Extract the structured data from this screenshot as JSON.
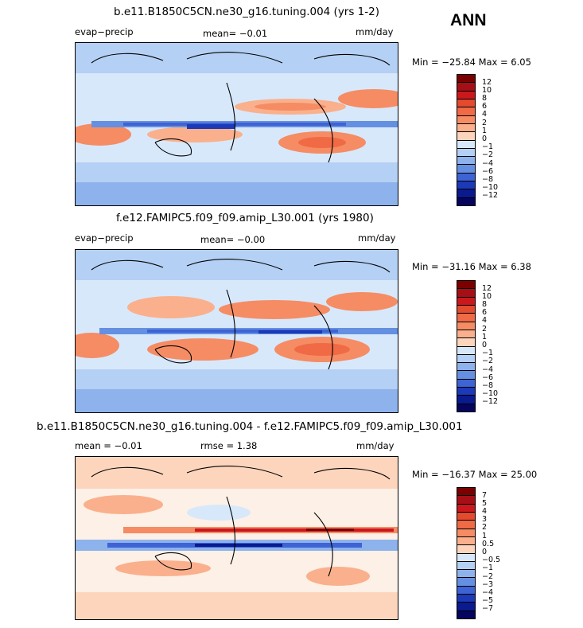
{
  "season": "ANN",
  "panels": [
    {
      "title": "b.e11.B1850C5CN.ne30_g16.tuning.004 (yrs 1-2)",
      "left_label": "evap−precip",
      "stat": "mean=   −0.01",
      "units": "mm/day",
      "minmax": "Min = −25.84  Max =    6.05",
      "colorbar_labels": [
        "12",
        "10",
        "8",
        "6",
        "4",
        "2",
        "1",
        "0",
        "−1",
        "−2",
        "−4",
        "−6",
        "−8",
        "−10",
        "−12"
      ]
    },
    {
      "title": "f.e12.FAMIPC5.f09_f09.amip_L30.001 (yrs 1980)",
      "left_label": "evap−precip",
      "stat": "mean=   −0.00",
      "units": "mm/day",
      "minmax": "Min = −31.16  Max =    6.38",
      "colorbar_labels": [
        "12",
        "10",
        "8",
        "6",
        "4",
        "2",
        "1",
        "0",
        "−1",
        "−2",
        "−4",
        "−6",
        "−8",
        "−10",
        "−12"
      ]
    },
    {
      "title": "b.e11.B1850C5CN.ne30_g16.tuning.004 - f.e12.FAMIPC5.f09_f09.amip_L30.001",
      "left_label": "mean =   −0.01",
      "stat": "rmse =    1.38",
      "units": "mm/day",
      "minmax": "Min = −16.37  Max =  25.00",
      "colorbar_labels": [
        "7",
        "5",
        "4",
        "3",
        "2",
        "1",
        "0.5",
        "0",
        "−0.5",
        "−1",
        "−2",
        "−3",
        "−4",
        "−5",
        "−7"
      ]
    }
  ],
  "colors": {
    "levels": [
      "#7a0000",
      "#a50f15",
      "#cb181d",
      "#e34a2e",
      "#f06a46",
      "#f58c64",
      "#fab08c",
      "#fdd5bd",
      "#fdf0e6",
      "#d8e8fb",
      "#b5d0f5",
      "#8db2ec",
      "#6590e2",
      "#3e63d4",
      "#1c39b8",
      "#0a1a8f",
      "#05055f"
    ]
  }
}
